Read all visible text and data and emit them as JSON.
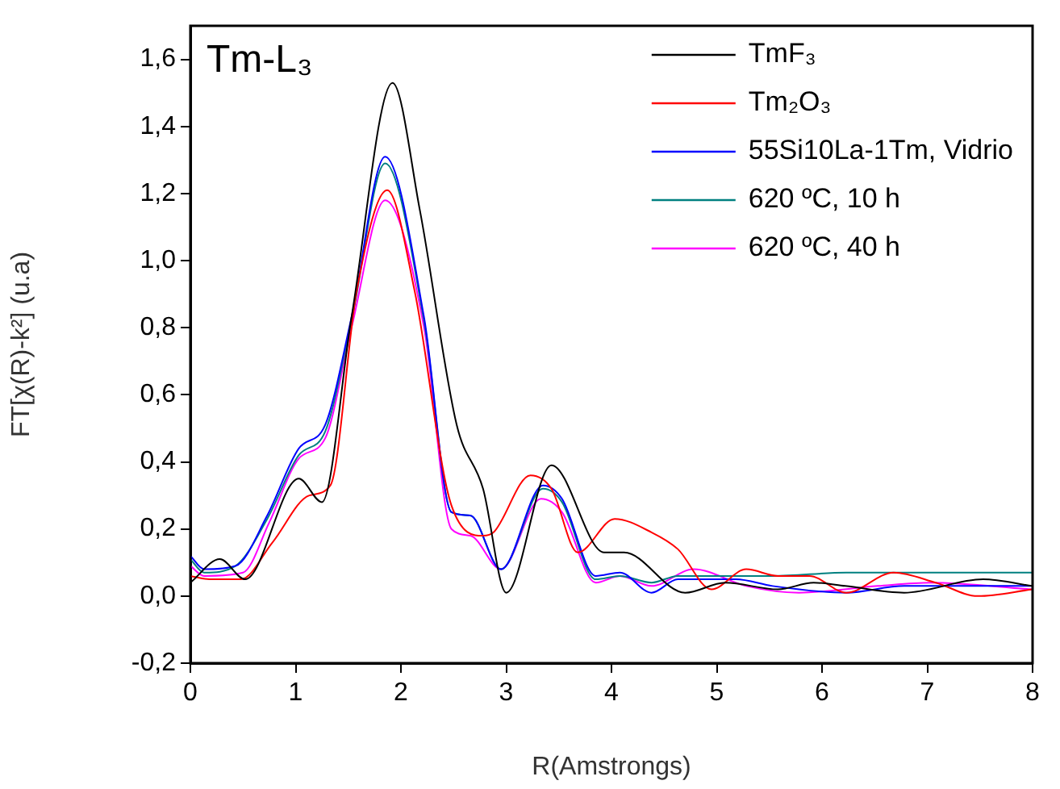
{
  "chart_data": {
    "type": "line",
    "xlabel": "R(Amstrongs)",
    "ylabel": "FT[χ(R)-k²] (u.a)",
    "annotations": [
      "Tm-L₃"
    ],
    "xlim": [
      0,
      8
    ],
    "xticks": [
      0,
      1,
      2,
      3,
      4,
      5,
      6,
      7,
      8
    ],
    "ylim": [
      -0.2,
      1.7
    ],
    "yticks": [
      {
        "value": -0.2,
        "label": "-0,2"
      },
      {
        "value": 0,
        "label": "0,0"
      },
      {
        "value": 0.2,
        "label": "0,2"
      },
      {
        "value": 0.4,
        "label": "0,4"
      },
      {
        "value": 0.6,
        "label": "0,6"
      },
      {
        "value": 0.8,
        "label": "0,8"
      },
      {
        "value": 1.0,
        "label": "1,0"
      },
      {
        "value": 1.2,
        "label": "1,2"
      },
      {
        "value": 1.4,
        "label": "1,4"
      },
      {
        "value": 1.6,
        "label": "1,6"
      }
    ],
    "grid": false,
    "legend": "top right",
    "marker": "none",
    "line_style": "solid",
    "series": [
      {
        "name": "TmF₃",
        "color": "#000000",
        "x": [
          0,
          0.28,
          0.52,
          1.03,
          1.25,
          1.53,
          1.92,
          2.18,
          2.53,
          2.78,
          3.0,
          3.43,
          3.93,
          4.12,
          4.7,
          5.08,
          5.58,
          5.92,
          6.22,
          6.78,
          7.53,
          8
        ],
        "values": [
          0.04,
          0.11,
          0.05,
          0.35,
          0.28,
          0.83,
          1.53,
          1.15,
          0.51,
          0.32,
          0.01,
          0.39,
          0.13,
          0.13,
          0.01,
          0.04,
          0.02,
          0.04,
          0.03,
          0.01,
          0.05,
          0.03
        ]
      },
      {
        "name": "Tm₂O₃",
        "color": "#ff0000",
        "x": [
          0,
          0.18,
          0.48,
          0.78,
          1.13,
          1.33,
          1.58,
          1.87,
          2.13,
          2.48,
          2.78,
          2.88,
          3.23,
          3.43,
          3.68,
          4.03,
          4.38,
          4.63,
          4.95,
          5.28,
          5.58,
          5.88,
          6.23,
          6.68,
          7.08,
          7.48,
          8
        ],
        "values": [
          0.06,
          0.05,
          0.05,
          0.16,
          0.3,
          0.33,
          0.91,
          1.21,
          0.91,
          0.27,
          0.18,
          0.19,
          0.36,
          0.32,
          0.13,
          0.23,
          0.19,
          0.14,
          0.02,
          0.08,
          0.06,
          0.06,
          0.01,
          0.07,
          0.04,
          0.0,
          0.02
        ]
      },
      {
        "name": "55Si10La-1Tm, Vidrio",
        "color": "#0000ff",
        "x": [
          0,
          0.13,
          0.43,
          0.73,
          1.03,
          1.28,
          1.53,
          1.85,
          2.22,
          2.48,
          2.66,
          2.95,
          3.35,
          3.53,
          3.85,
          4.08,
          4.38,
          4.63,
          5.18,
          5.53,
          6.23,
          6.78,
          8
        ],
        "values": [
          0.12,
          0.08,
          0.09,
          0.24,
          0.44,
          0.51,
          0.83,
          1.31,
          0.83,
          0.25,
          0.24,
          0.08,
          0.33,
          0.29,
          0.06,
          0.07,
          0.01,
          0.05,
          0.05,
          0.03,
          0.01,
          0.03,
          0.03
        ]
      },
      {
        "name": "620 ºC, 10 h",
        "color": "#008080",
        "x": [
          0,
          0.13,
          0.43,
          0.73,
          1.03,
          1.28,
          1.53,
          1.85,
          2.22,
          2.48,
          2.66,
          2.95,
          3.35,
          3.53,
          3.85,
          4.08,
          4.38,
          4.63,
          5.18,
          5.53,
          6.23,
          6.78,
          8
        ],
        "values": [
          0.11,
          0.07,
          0.09,
          0.23,
          0.42,
          0.49,
          0.82,
          1.29,
          0.82,
          0.25,
          0.24,
          0.08,
          0.32,
          0.28,
          0.05,
          0.06,
          0.04,
          0.06,
          0.06,
          0.06,
          0.07,
          0.07,
          0.07
        ]
      },
      {
        "name": "620 ºC, 40 h",
        "color": "#ff00ff",
        "x": [
          0,
          0.13,
          0.5,
          0.75,
          1.03,
          1.28,
          1.53,
          1.85,
          2.22,
          2.48,
          2.66,
          2.95,
          3.33,
          3.53,
          3.85,
          4.08,
          4.38,
          4.78,
          5.28,
          5.78,
          6.53,
          7.03,
          8
        ],
        "values": [
          0.09,
          0.06,
          0.07,
          0.22,
          0.41,
          0.47,
          0.8,
          1.18,
          0.8,
          0.2,
          0.18,
          0.08,
          0.29,
          0.25,
          0.04,
          0.06,
          0.03,
          0.08,
          0.03,
          0.01,
          0.03,
          0.04,
          0.02
        ]
      }
    ]
  }
}
